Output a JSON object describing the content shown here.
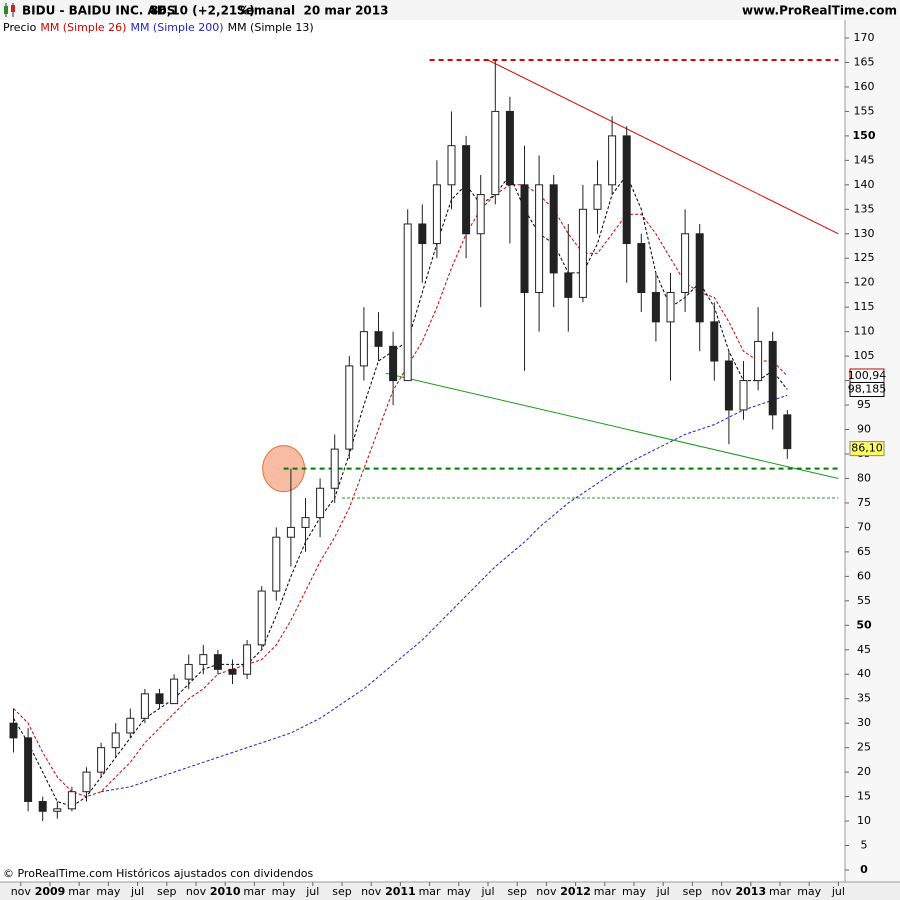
{
  "chart_data": {
    "type": "candlestick",
    "title": "BIDU - BAIDU INC. ADS",
    "subtitle": "86,10 (+2,21%)",
    "period": "Semanal  20 mar 2013",
    "source": "www.ProRealTime.com",
    "price_label": "Precio",
    "footer": "© ProRealTime.com Históricos ajustados con dividendos",
    "x": [
      "2008-10",
      "2008-11",
      "2008-12",
      "2009-01",
      "2009-02",
      "2009-03",
      "2009-04",
      "2009-05",
      "2009-06",
      "2009-07",
      "2009-08",
      "2009-09",
      "2009-10",
      "2009-11",
      "2009-12",
      "2010-01",
      "2010-02",
      "2010-03",
      "2010-04",
      "2010-05",
      "2010-06",
      "2010-07",
      "2010-08",
      "2010-09",
      "2010-10",
      "2010-11",
      "2010-12",
      "2011-01",
      "2011-02",
      "2011-03",
      "2011-04",
      "2011-05",
      "2011-06",
      "2011-07",
      "2011-08",
      "2011-09",
      "2011-10",
      "2011-11",
      "2011-12",
      "2012-01",
      "2012-02",
      "2012-03",
      "2012-04",
      "2012-05",
      "2012-06",
      "2012-07",
      "2012-08",
      "2012-09",
      "2012-10",
      "2012-11",
      "2012-12",
      "2013-01",
      "2013-02",
      "2013-03"
    ],
    "open": [
      30,
      27,
      14,
      12,
      12.5,
      16,
      20,
      25,
      28,
      31,
      36,
      34,
      39,
      42,
      44,
      41,
      40,
      46,
      57,
      68,
      70,
      72,
      78,
      86,
      103,
      110,
      107,
      100,
      132,
      128,
      140,
      148,
      130,
      138,
      155,
      140,
      118,
      140,
      122,
      117,
      135,
      140,
      150,
      128,
      118,
      112,
      118,
      130,
      112,
      104,
      94,
      100,
      108,
      93
    ],
    "high": [
      33,
      29,
      15,
      14,
      17,
      21,
      26,
      30,
      33,
      37,
      37,
      40,
      44,
      46,
      45,
      43,
      47,
      58,
      70,
      82,
      76,
      80,
      89,
      105,
      115,
      114,
      110,
      135,
      136,
      145,
      155,
      150,
      142,
      165.5,
      158,
      148,
      146,
      142,
      132,
      140,
      145,
      154,
      152,
      130,
      122,
      122,
      135,
      132,
      116,
      106,
      104,
      115,
      110,
      94
    ],
    "low": [
      24,
      12,
      10,
      10.5,
      12,
      14,
      19,
      23,
      27,
      30,
      33,
      34,
      37,
      40,
      40,
      38,
      39,
      45,
      55,
      62,
      65,
      68,
      75,
      84,
      100,
      104,
      95,
      100,
      120,
      125,
      135,
      125,
      115,
      136,
      128,
      102,
      110,
      115,
      110,
      116,
      130,
      138,
      120,
      114,
      108,
      100,
      114,
      106,
      100,
      87,
      92,
      98,
      90,
      84
    ],
    "close": [
      27,
      14,
      12,
      12.5,
      16,
      20,
      25,
      28,
      31,
      36,
      34,
      39,
      42,
      44,
      41,
      40,
      46,
      57,
      68,
      70,
      72,
      78,
      86,
      103,
      110,
      107,
      100,
      132,
      128,
      140,
      148,
      130,
      138,
      155,
      140,
      118,
      140,
      122,
      117,
      135,
      140,
      150,
      128,
      118,
      112,
      118,
      130,
      112,
      104,
      94,
      100,
      108,
      93,
      86.1
    ],
    "close_labels": [
      null,
      null,
      null,
      null,
      null,
      null,
      null,
      null,
      null,
      null,
      null,
      null,
      null,
      null,
      null,
      null,
      null,
      null,
      null,
      null,
      null,
      null,
      null,
      null,
      null,
      null,
      null,
      null,
      null,
      null,
      null,
      null,
      null,
      null,
      null,
      null,
      null,
      null,
      null,
      null,
      null,
      null,
      null,
      null,
      null,
      null,
      null,
      null,
      null,
      null,
      null,
      null,
      null,
      "86,10"
    ],
    "series": [
      {
        "name": "MM (Simple 26)",
        "color": "#cc0000",
        "values": [
          33,
          30,
          24,
          19,
          16,
          15,
          16,
          19,
          22,
          26,
          29,
          32,
          35,
          37,
          40,
          41,
          42,
          43,
          46,
          51,
          57,
          63,
          68,
          74,
          82,
          90,
          98,
          103,
          108,
          115,
          123,
          130,
          135,
          138,
          140,
          140,
          138,
          135,
          130,
          126,
          126,
          130,
          134,
          134,
          130,
          125,
          120,
          118,
          117,
          112,
          106,
          104,
          104,
          100.94
        ],
        "value_labels": [
          null,
          null,
          null,
          null,
          null,
          null,
          null,
          null,
          null,
          null,
          null,
          null,
          null,
          null,
          null,
          null,
          null,
          null,
          null,
          null,
          null,
          null,
          null,
          null,
          null,
          null,
          null,
          null,
          null,
          null,
          null,
          null,
          null,
          null,
          null,
          null,
          null,
          null,
          null,
          null,
          null,
          null,
          null,
          null,
          null,
          null,
          null,
          null,
          null,
          null,
          null,
          null,
          null,
          "100,94"
        ]
      },
      {
        "name": "MM (Simple 200)",
        "color": "#1f1fcc",
        "values": [
          null,
          null,
          null,
          null,
          null,
          null,
          16,
          16.5,
          17,
          18,
          19,
          20,
          21,
          22,
          23,
          24,
          25,
          26,
          27,
          28,
          29.5,
          31,
          33,
          35,
          37,
          39.5,
          42,
          44.5,
          47,
          50,
          53,
          56,
          59,
          62,
          64.5,
          67,
          70,
          72.5,
          75,
          77,
          79,
          81,
          83,
          84.5,
          86,
          87.5,
          89,
          90,
          91,
          92.5,
          94,
          95,
          96,
          97
        ]
      },
      {
        "name": "MM (Simple 13)",
        "color": "#000000",
        "values": [
          31,
          26,
          20,
          14,
          13,
          15,
          19,
          23,
          27,
          31,
          33,
          35,
          38,
          41,
          42,
          42,
          42,
          45,
          52,
          60,
          67,
          72,
          76,
          85,
          95,
          104,
          106,
          108,
          118,
          128,
          137,
          140,
          136,
          138,
          142,
          135,
          130,
          128,
          122,
          122,
          128,
          138,
          142,
          135,
          122,
          115,
          117,
          120,
          115,
          106,
          100,
          100,
          102,
          98.185
        ],
        "value_labels": [
          null,
          null,
          null,
          null,
          null,
          null,
          null,
          null,
          null,
          null,
          null,
          null,
          null,
          null,
          null,
          null,
          null,
          null,
          null,
          null,
          null,
          null,
          null,
          null,
          null,
          null,
          null,
          null,
          null,
          null,
          null,
          null,
          null,
          null,
          null,
          null,
          null,
          null,
          null,
          null,
          null,
          null,
          null,
          null,
          null,
          null,
          null,
          null,
          null,
          null,
          null,
          null,
          null,
          "98,185"
        ]
      }
    ],
    "annotations": [
      {
        "x": [
          "2011-03",
          "2013-07"
        ],
        "y": [
          165.5,
          165.5
        ],
        "color": "#e00000",
        "dashed": true
      },
      {
        "x": [
          "2011-07",
          "2013-07"
        ],
        "y": [
          165.5,
          130
        ],
        "color": "#e00000",
        "dashed": false
      },
      {
        "x": [
          "2010-12",
          "2013-07"
        ],
        "y": [
          101.5,
          80
        ],
        "color": "#1a9a1a",
        "dashed": false
      },
      {
        "x": [
          "2010-05",
          "2013-07"
        ],
        "y": [
          82,
          82
        ],
        "color": "#007a00",
        "dashed": true
      },
      {
        "x": [
          "2010-09",
          "2013-07"
        ],
        "y": [
          76,
          76
        ],
        "color": "#2a9a2a",
        "dashed": true
      }
    ],
    "highlight": {
      "x": "2010-05",
      "y": 82,
      "color": "#f4a582"
    },
    "xlim": [
      "2008-09",
      "2013-07"
    ],
    "xticks": [
      {
        "value": "2008-11",
        "label": "nov"
      },
      {
        "value": "2009-01",
        "label": "2009"
      },
      {
        "value": "2009-03",
        "label": "mar"
      },
      {
        "value": "2009-05",
        "label": "may"
      },
      {
        "value": "2009-07",
        "label": "jul"
      },
      {
        "value": "2009-09",
        "label": "sep"
      },
      {
        "value": "2009-11",
        "label": "nov"
      },
      {
        "value": "2010-01",
        "label": "2010"
      },
      {
        "value": "2010-03",
        "label": "mar"
      },
      {
        "value": "2010-05",
        "label": "may"
      },
      {
        "value": "2010-07",
        "label": "jul"
      },
      {
        "value": "2010-09",
        "label": "sep"
      },
      {
        "value": "2010-11",
        "label": "nov"
      },
      {
        "value": "2011-01",
        "label": "2011"
      },
      {
        "value": "2011-03",
        "label": "mar"
      },
      {
        "value": "2011-05",
        "label": "may"
      },
      {
        "value": "2011-07",
        "label": "jul"
      },
      {
        "value": "2011-09",
        "label": "sep"
      },
      {
        "value": "2011-11",
        "label": "nov"
      },
      {
        "value": "2012-01",
        "label": "2012"
      },
      {
        "value": "2012-03",
        "label": "mar"
      },
      {
        "value": "2012-05",
        "label": "may"
      },
      {
        "value": "2012-07",
        "label": "jul"
      },
      {
        "value": "2012-09",
        "label": "sep"
      },
      {
        "value": "2012-11",
        "label": "nov"
      },
      {
        "value": "2013-01",
        "label": "2013"
      },
      {
        "value": "2013-03",
        "label": "mar"
      },
      {
        "value": "2013-05",
        "label": "may"
      },
      {
        "value": "2013-07",
        "label": "jul"
      }
    ],
    "ylim": [
      0,
      170
    ],
    "yticks": [
      0,
      5,
      10,
      15,
      20,
      25,
      30,
      35,
      40,
      45,
      50,
      55,
      60,
      65,
      70,
      75,
      80,
      85,
      90,
      95,
      100,
      105,
      110,
      115,
      120,
      125,
      130,
      135,
      140,
      145,
      150,
      155,
      160,
      165,
      170
    ]
  }
}
